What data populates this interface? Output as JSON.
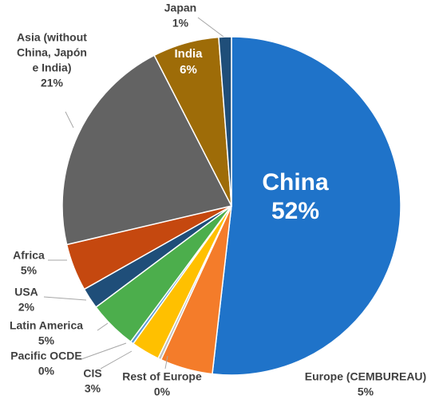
{
  "chart_data": {
    "type": "pie",
    "title": "",
    "start_angle_deg": 0,
    "direction": "clockwise",
    "slices": [
      {
        "label": "China",
        "value_label": "52%",
        "value": 51.5,
        "color": "#1f73c9",
        "label_lines": [
          "China"
        ]
      },
      {
        "label": "Europe (CEMBUREAU)",
        "value_label": "5%",
        "value": 5.0,
        "color": "#f47c2a",
        "label_lines": [
          "Europe (CEMBUREAU)"
        ]
      },
      {
        "label": "Rest of Europe",
        "value_label": "0%",
        "value": 0.3,
        "color": "#bfbfbf",
        "label_lines": [
          "Rest of Europe"
        ]
      },
      {
        "label": "CIS",
        "value_label": "3%",
        "value": 2.7,
        "color": "#ffc000",
        "label_lines": [
          "CIS"
        ]
      },
      {
        "label": "Pacific OCDE",
        "value_label": "0%",
        "value": 0.3,
        "color": "#5b9bd5",
        "label_lines": [
          "Pacific OCDE"
        ]
      },
      {
        "label": "Latin America",
        "value_label": "5%",
        "value": 4.6,
        "color": "#4cae4c",
        "label_lines": [
          "Latin America"
        ]
      },
      {
        "label": "USA",
        "value_label": "2%",
        "value": 2.0,
        "color": "#1f4e79",
        "label_lines": [
          "USA"
        ]
      },
      {
        "label": "Africa",
        "value_label": "5%",
        "value": 4.5,
        "color": "#c5480f",
        "label_lines": [
          "Africa"
        ]
      },
      {
        "label": "Asia (without China, Japón e India)",
        "value_label": "21%",
        "value": 21.0,
        "color": "#636363",
        "label_lines": [
          "Asia (without",
          "China, Japón",
          "e India)"
        ]
      },
      {
        "label": "India",
        "value_label": "6%",
        "value": 6.3,
        "color": "#9e6c08",
        "label_lines": [
          "India"
        ]
      },
      {
        "label": "Japan",
        "value_label": "1%",
        "value": 1.2,
        "color": "#1f4e79",
        "label_lines": [
          "Japan"
        ]
      }
    ]
  }
}
